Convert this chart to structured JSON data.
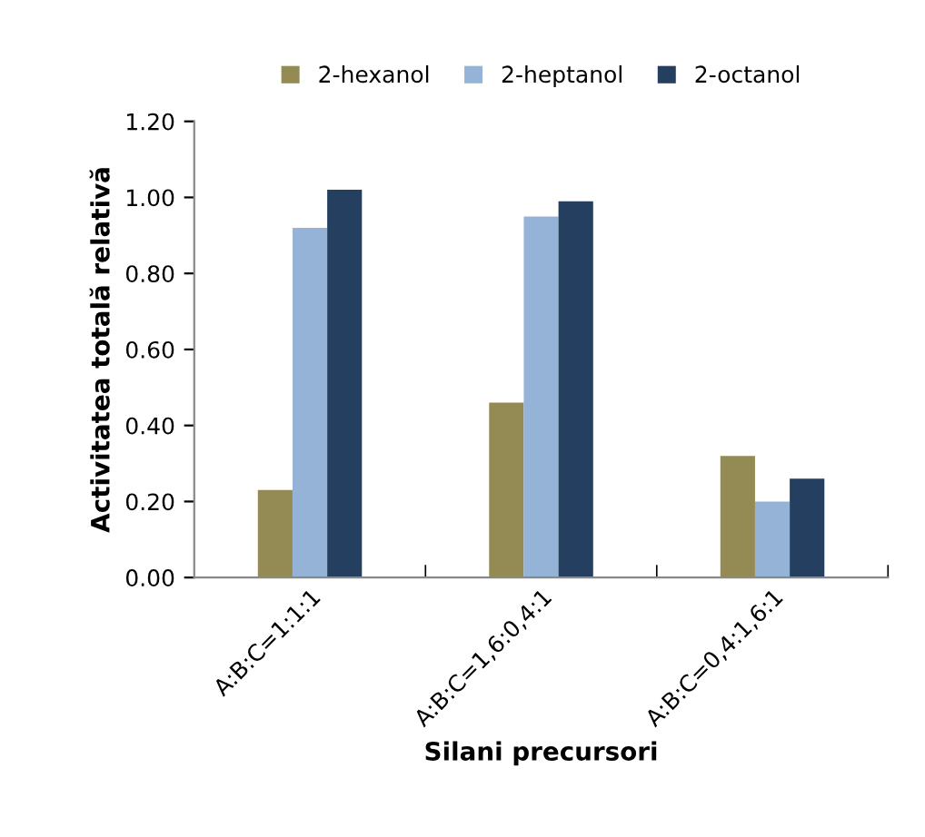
{
  "chart_data": {
    "type": "bar",
    "xlabel": "Silani precursori",
    "ylabel": "Activitatea totală relativă",
    "categories": [
      "A:B:C=1:1:1",
      "A:B:C=1,6:0,4:1",
      "A:B:C=0,4:1,6:1"
    ],
    "series": [
      {
        "name": "2-hexanol",
        "color": "#948a54",
        "values": [
          0.23,
          0.46,
          0.32
        ]
      },
      {
        "name": "2-heptanol",
        "color": "#95b3d7",
        "values": [
          0.92,
          0.95,
          0.2
        ]
      },
      {
        "name": "2-octanol",
        "color": "#243f60",
        "values": [
          1.02,
          0.99,
          0.26
        ]
      }
    ],
    "ylim": [
      0,
      1.2
    ],
    "yticks": [
      {
        "value": 0,
        "label": "0.00"
      },
      {
        "value": 0.2,
        "label": "0.20"
      },
      {
        "value": 0.4,
        "label": "0.40"
      },
      {
        "value": 0.6,
        "label": "0.60"
      },
      {
        "value": 0.8,
        "label": "0.80"
      },
      {
        "value": 1.0,
        "label": "1.00"
      },
      {
        "value": 1.2,
        "label": "1.20"
      }
    ],
    "grid": false,
    "legend": "top"
  }
}
